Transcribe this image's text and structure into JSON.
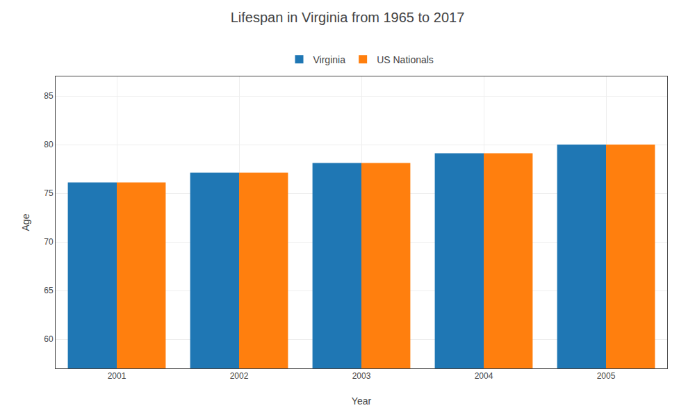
{
  "chart_data": {
    "type": "bar",
    "title": "Lifespan in Virginia from 1965 to 2017",
    "xlabel": "Year",
    "ylabel": "Age",
    "categories": [
      "2001",
      "2002",
      "2003",
      "2004",
      "2005"
    ],
    "series": [
      {
        "name": "Virginia",
        "values": [
          76.1,
          77.1,
          78.1,
          79.1,
          80.0
        ]
      },
      {
        "name": "US Nationals",
        "values": [
          76.1,
          77.1,
          78.1,
          79.1,
          80.0
        ]
      }
    ],
    "ylim": [
      57,
      87
    ],
    "yticks": [
      60,
      65,
      70,
      75,
      80,
      85
    ],
    "grid": true,
    "legend": "top"
  }
}
